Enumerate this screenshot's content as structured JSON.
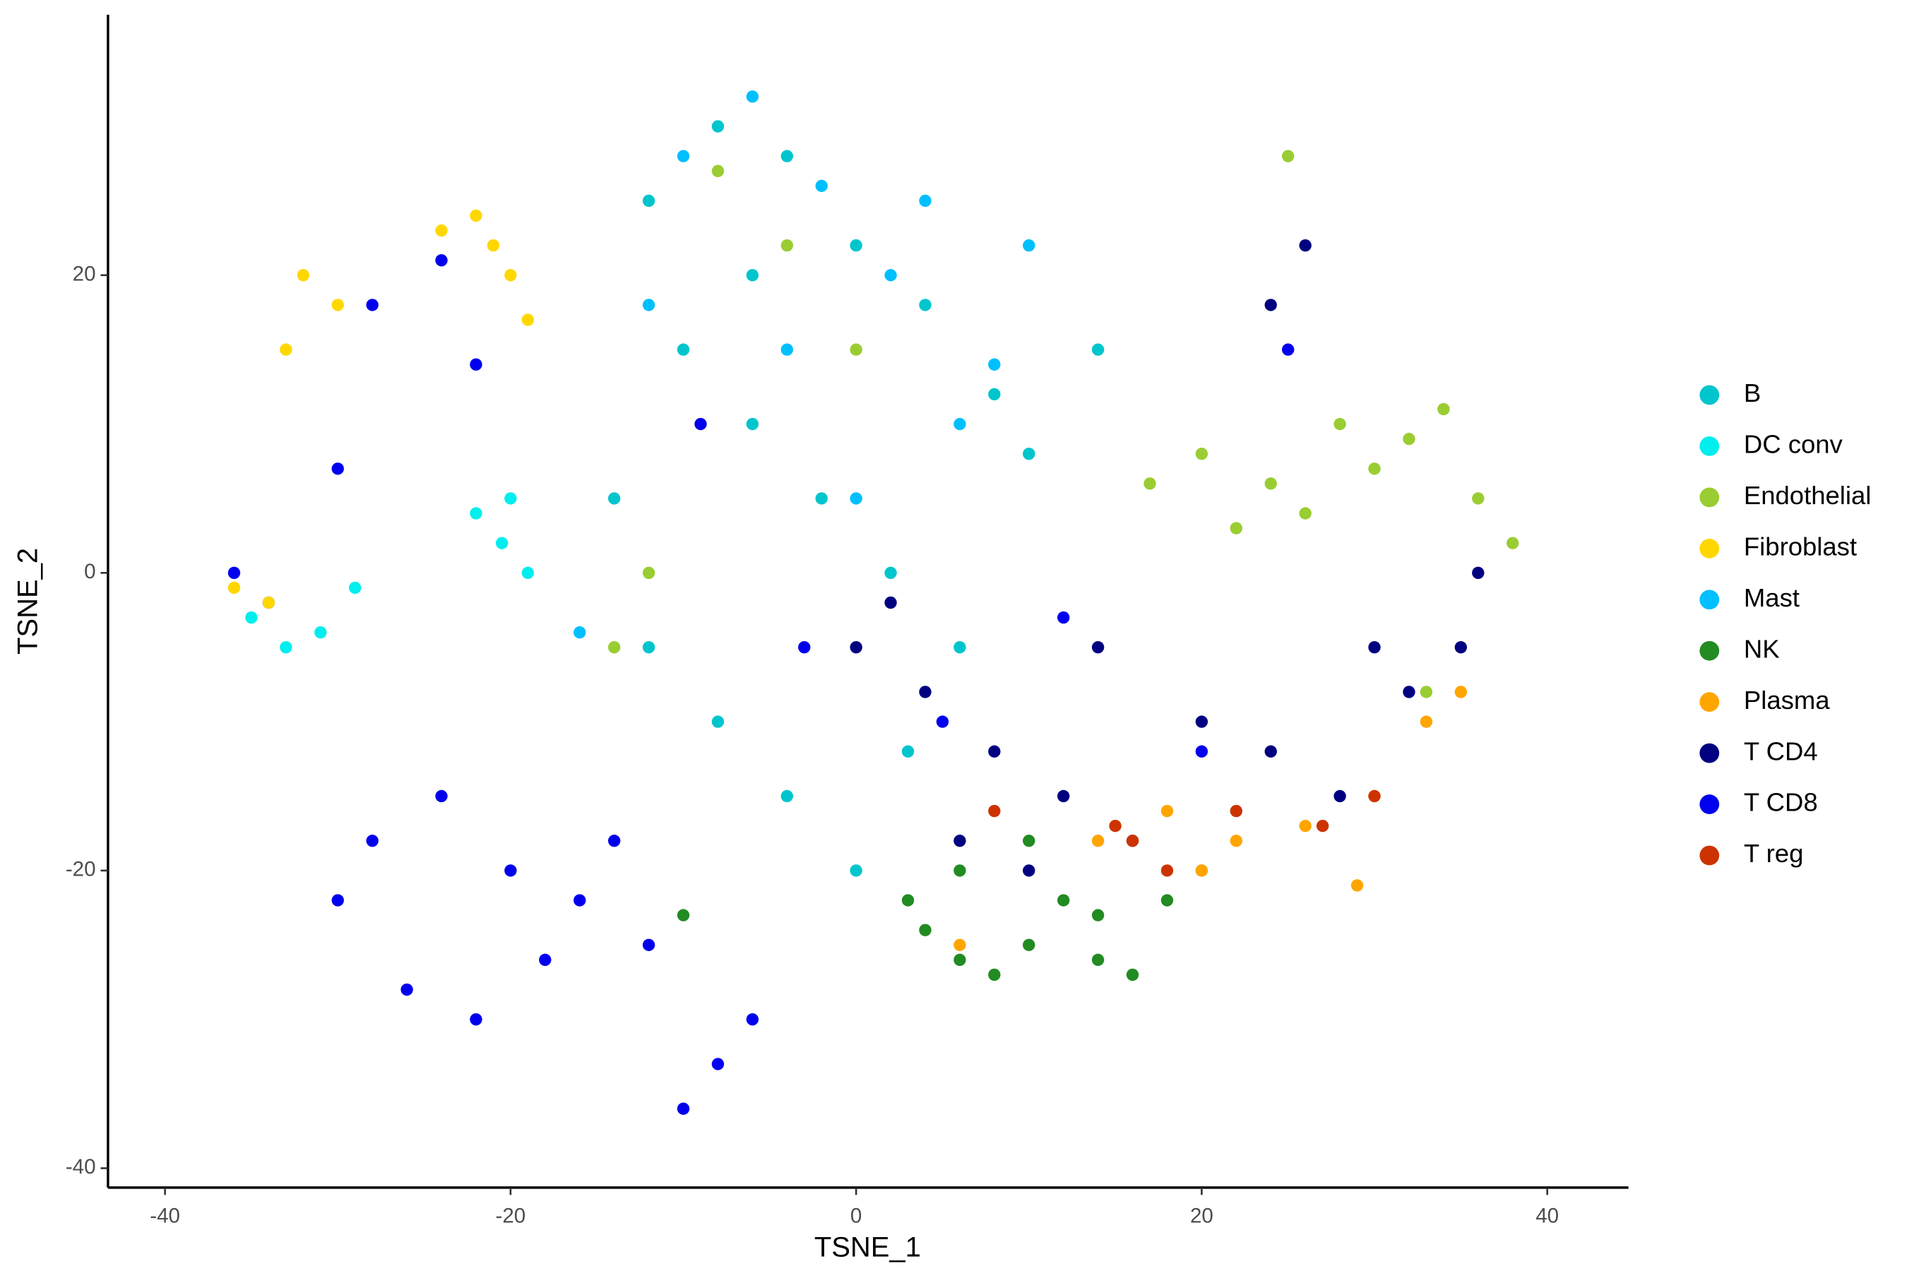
{
  "chart_data": {
    "type": "scatter",
    "x_label": "TSNE_1",
    "y_label": "TSNE_2",
    "xlim": [
      -43.3,
      44.7
    ],
    "ylim": [
      -41.3,
      37.5
    ],
    "xticks": [
      -40,
      -20,
      0,
      20,
      40
    ],
    "yticks": [
      -40,
      -20,
      0,
      20
    ],
    "grid": false,
    "legend": "right",
    "series": [
      {
        "name": "T CD8",
        "color": "#0000EE",
        "x": [
          -28,
          -24,
          -20,
          -16,
          -12,
          -8,
          -26,
          -22,
          -18,
          -14,
          -10,
          -6,
          -30,
          -34,
          -36,
          -28,
          -24,
          -22,
          -30,
          -3,
          5,
          12,
          20,
          25,
          -9
        ],
        "values": [
          -18,
          -15,
          -20,
          -22,
          -25,
          -33,
          -28,
          -30,
          -26,
          -18,
          -36,
          -30,
          -22,
          -2,
          0,
          18,
          21,
          14,
          7,
          -5,
          -10,
          -3,
          -12,
          15,
          10
        ]
      },
      {
        "name": "B",
        "color": "#00C5CD",
        "x": [
          -12,
          -8,
          -4,
          0,
          4,
          8,
          -10,
          -6,
          -2,
          2,
          6,
          -14,
          -12,
          -8,
          -4,
          0,
          -6,
          10,
          14,
          3
        ],
        "values": [
          25,
          30,
          28,
          22,
          18,
          12,
          15,
          10,
          5,
          0,
          -5,
          5,
          -5,
          -10,
          -15,
          -20,
          20,
          8,
          15,
          -12
        ]
      },
      {
        "name": "DC conv",
        "color": "#00EEEE",
        "x": [
          -20,
          -20.5,
          -19,
          -35,
          -33,
          -31,
          -29,
          -22
        ],
        "values": [
          5,
          2,
          0,
          -3,
          -5,
          -4,
          -1,
          4
        ]
      },
      {
        "name": "Endothelial",
        "color": "#9ACD32",
        "x": [
          20,
          24,
          28,
          32,
          36,
          38,
          22,
          26,
          30,
          34,
          17,
          -8,
          -4,
          0,
          25,
          -14,
          33,
          -12
        ],
        "values": [
          8,
          6,
          10,
          9,
          5,
          2,
          3,
          4,
          7,
          11,
          6,
          27,
          22,
          15,
          28,
          -5,
          -8,
          0
        ]
      },
      {
        "name": "Fibroblast",
        "color": "#FFD700",
        "x": [
          -22,
          -21,
          -20,
          -24,
          -32,
          -30,
          -33,
          -19,
          -36,
          -34
        ],
        "values": [
          24,
          22,
          20,
          23,
          20,
          18,
          15,
          17,
          -1,
          -2
        ]
      },
      {
        "name": "Mast",
        "color": "#00BFFF",
        "x": [
          -10,
          -6,
          -2,
          2,
          6,
          -4,
          0,
          8,
          -12,
          4,
          10,
          -16
        ],
        "values": [
          28,
          32,
          26,
          20,
          10,
          15,
          5,
          14,
          18,
          25,
          22,
          -4
        ]
      },
      {
        "name": "NK",
        "color": "#228B22",
        "x": [
          4,
          6,
          8,
          10,
          12,
          14,
          16,
          6,
          10,
          14,
          18,
          -10,
          20,
          3
        ],
        "values": [
          -24,
          -26,
          -27,
          -25,
          -22,
          -26,
          -27,
          -20,
          -18,
          -23,
          -22,
          -23,
          -20,
          -22
        ]
      },
      {
        "name": "Plasma",
        "color": "#FFA500",
        "x": [
          18,
          22,
          26,
          30,
          33,
          35,
          29,
          20,
          14,
          6
        ],
        "values": [
          -16,
          -18,
          -17,
          -15,
          -10,
          -8,
          -21,
          -20,
          -18,
          -25
        ]
      },
      {
        "name": "T CD4",
        "color": "#000080",
        "x": [
          0,
          4,
          8,
          12,
          16,
          20,
          24,
          28,
          32,
          35,
          2,
          6,
          10,
          14,
          26,
          24,
          36,
          30
        ],
        "values": [
          -5,
          -8,
          -12,
          -15,
          -18,
          -10,
          -12,
          -15,
          -8,
          -5,
          -2,
          -18,
          -20,
          -5,
          22,
          18,
          0,
          -5
        ]
      },
      {
        "name": "T reg",
        "color": "#CD3300",
        "x": [
          8,
          16,
          15,
          18,
          22,
          27,
          30
        ],
        "values": [
          -16,
          -18,
          -17,
          -20,
          -16,
          -17,
          -15
        ]
      }
    ],
    "legend_order": [
      "B",
      "DC conv",
      "Endothelial",
      "Fibroblast",
      "Mast",
      "NK",
      "Plasma",
      "T CD4",
      "T CD8",
      "T reg"
    ]
  }
}
